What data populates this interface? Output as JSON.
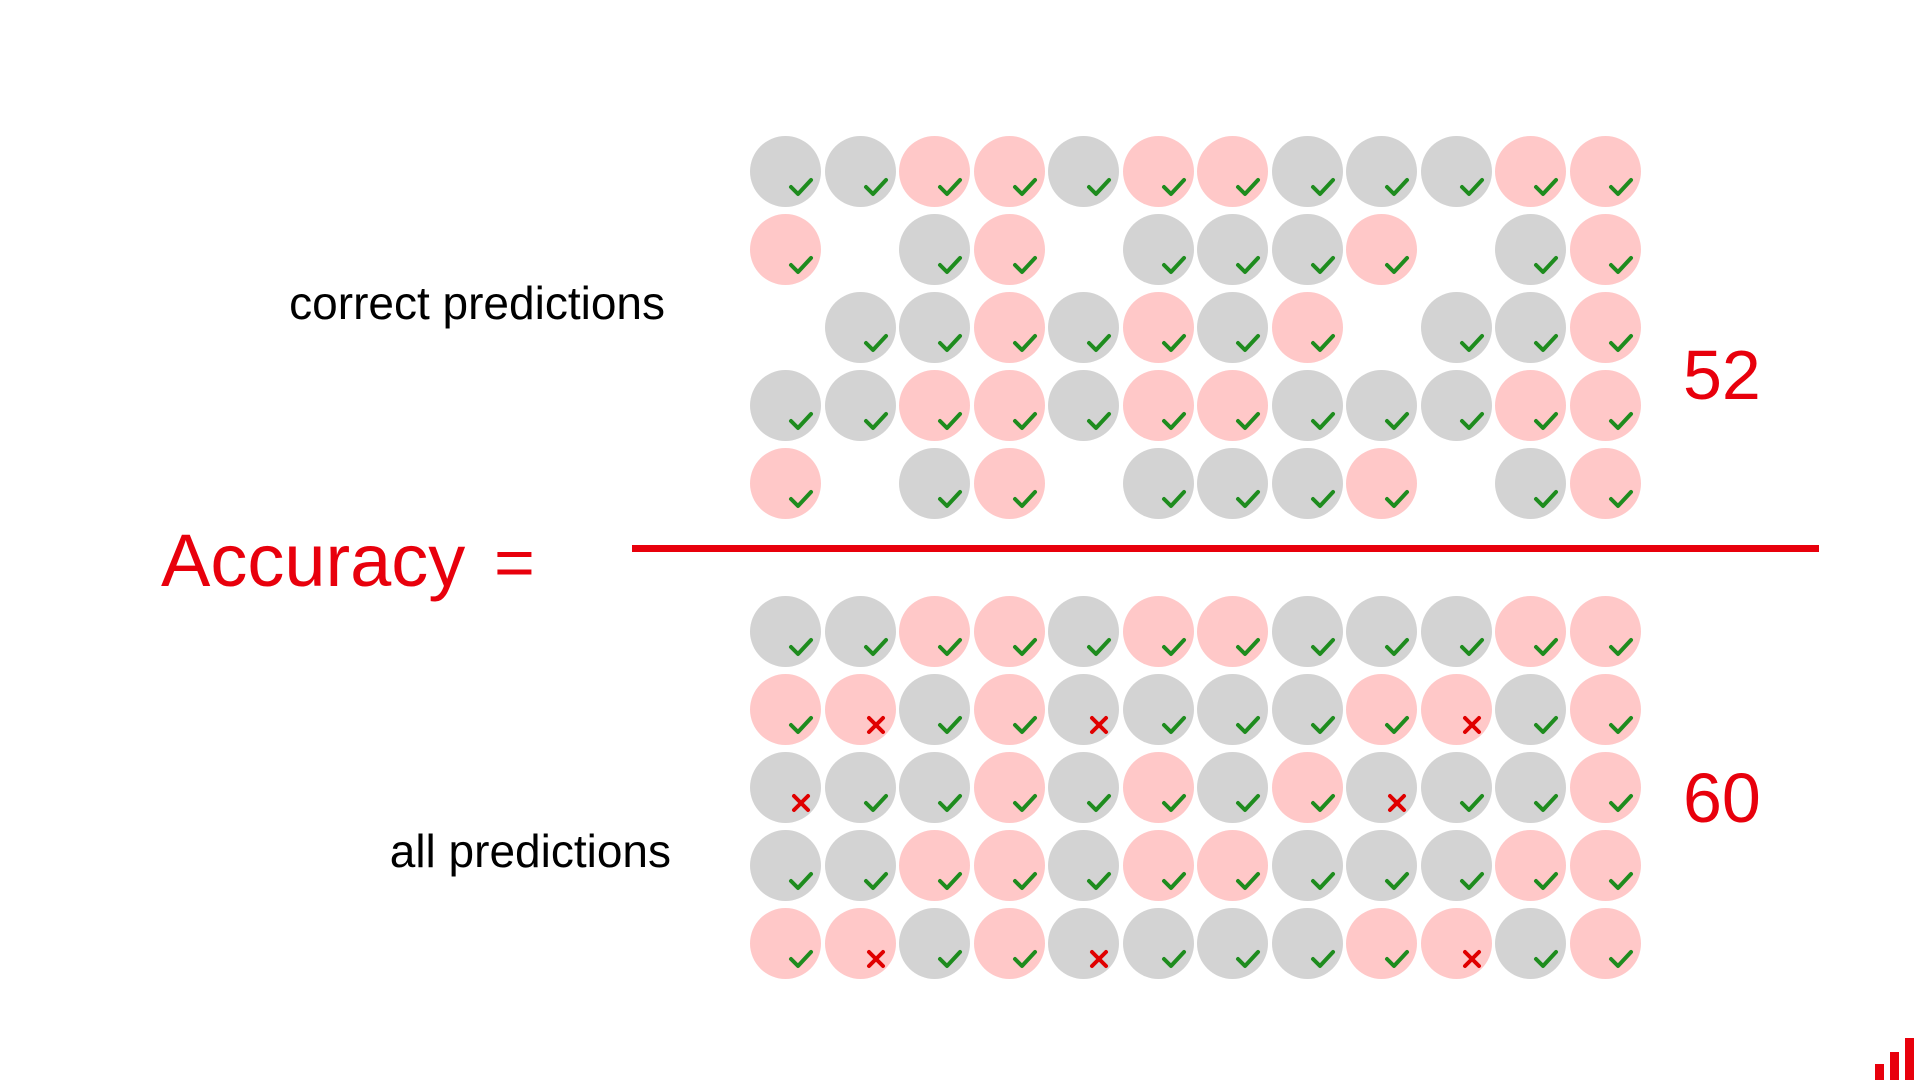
{
  "labels": {
    "numerator": "correct predictions",
    "denominator": "all predictions",
    "accuracy": "Accuracy",
    "equals": "="
  },
  "counts": {
    "numerator": "52",
    "denominator": "60"
  },
  "colors": {
    "accent": "#e8000c",
    "class_gray": "#d3d3d3",
    "class_pink": "#ffc8c8",
    "correct_mark": "#1e8c1e",
    "wrong_mark": "#e00000"
  },
  "legend_codes": {
    "g": "gray circle, correct (check)",
    "p": "pink circle, correct (check)",
    "gx": "gray circle, wrong (cross)",
    "px": "pink circle, wrong (cross)",
    "-": "empty"
  },
  "numerator_grid": [
    [
      "g",
      "g",
      "p",
      "p",
      "g",
      "p",
      "p",
      "g",
      "g",
      "g",
      "p",
      "p"
    ],
    [
      "p",
      "-",
      "g",
      "p",
      "-",
      "g",
      "g",
      "g",
      "p",
      "-",
      "g",
      "p"
    ],
    [
      "-",
      "g",
      "g",
      "p",
      "g",
      "p",
      "g",
      "p",
      "-",
      "g",
      "g",
      "p"
    ],
    [
      "g",
      "g",
      "p",
      "p",
      "g",
      "p",
      "p",
      "g",
      "g",
      "g",
      "p",
      "p"
    ],
    [
      "p",
      "-",
      "g",
      "p",
      "-",
      "g",
      "g",
      "g",
      "p",
      "-",
      "g",
      "p"
    ]
  ],
  "denominator_grid": [
    [
      "g",
      "g",
      "p",
      "p",
      "g",
      "p",
      "p",
      "g",
      "g",
      "g",
      "p",
      "p"
    ],
    [
      "p",
      "px",
      "g",
      "p",
      "gx",
      "g",
      "g",
      "g",
      "p",
      "px",
      "g",
      "p"
    ],
    [
      "gx",
      "g",
      "g",
      "p",
      "g",
      "p",
      "g",
      "p",
      "gx",
      "g",
      "g",
      "p"
    ],
    [
      "g",
      "g",
      "p",
      "p",
      "g",
      "p",
      "p",
      "g",
      "g",
      "g",
      "p",
      "p"
    ],
    [
      "p",
      "px",
      "g",
      "p",
      "gx",
      "g",
      "g",
      "g",
      "p",
      "px",
      "g",
      "p"
    ]
  ]
}
